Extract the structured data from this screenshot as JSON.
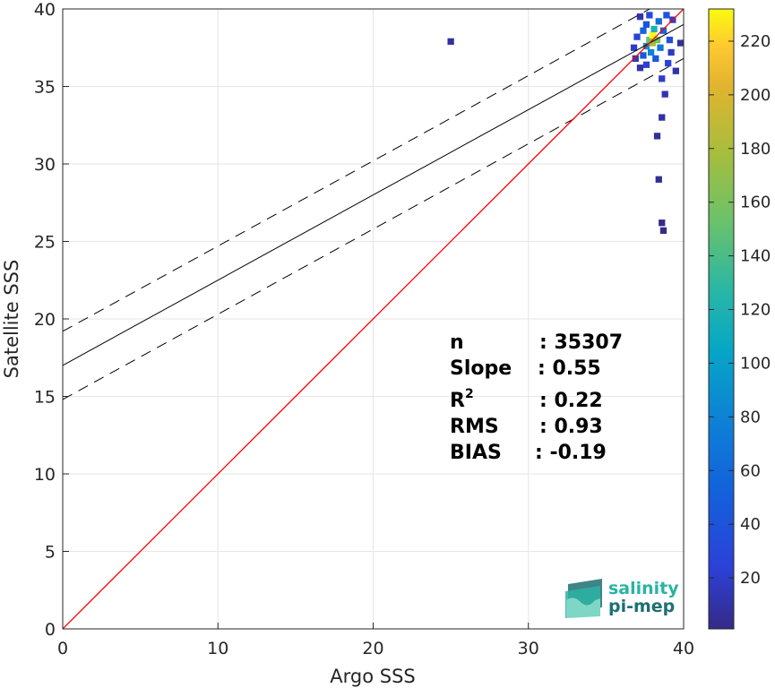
{
  "chart_data": {
    "type": "heatmap",
    "title": "",
    "xlabel": "Argo SSS",
    "ylabel": "Satellite SSS",
    "xlim": [
      0,
      40
    ],
    "ylim": [
      0,
      40
    ],
    "xticks": [
      0,
      10,
      20,
      30,
      40
    ],
    "yticks": [
      0,
      5,
      10,
      15,
      20,
      25,
      30,
      35,
      40
    ],
    "grid": true,
    "colorbar": {
      "colormap": "parula",
      "range": [
        1,
        232
      ],
      "ticks": [
        20,
        40,
        60,
        80,
        100,
        120,
        140,
        160,
        180,
        200,
        220
      ]
    },
    "lines": {
      "identity": {
        "slope": 1,
        "intercept": 0,
        "color": "#ff0000"
      },
      "regression": {
        "slope": 0.55,
        "intercept": 17.0,
        "color": "#000000"
      },
      "upper_bound": {
        "slope": 0.55,
        "intercept": 19.2,
        "color": "#000000",
        "style": "dashed"
      },
      "lower_bound": {
        "slope": 0.55,
        "intercept": 14.8,
        "color": "#000000",
        "style": "dashed"
      }
    },
    "density_cells": [
      {
        "x": 25.0,
        "y": 37.9,
        "count": 8
      },
      {
        "x": 36.8,
        "y": 37.5,
        "count": 20
      },
      {
        "x": 36.9,
        "y": 36.8,
        "count": 15
      },
      {
        "x": 37.0,
        "y": 38.2,
        "count": 25
      },
      {
        "x": 37.2,
        "y": 39.5,
        "count": 12
      },
      {
        "x": 37.2,
        "y": 36.2,
        "count": 10
      },
      {
        "x": 37.4,
        "y": 37.0,
        "count": 45
      },
      {
        "x": 37.4,
        "y": 38.6,
        "count": 55
      },
      {
        "x": 37.6,
        "y": 37.6,
        "count": 90
      },
      {
        "x": 37.6,
        "y": 39.0,
        "count": 40
      },
      {
        "x": 37.6,
        "y": 36.4,
        "count": 22
      },
      {
        "x": 37.8,
        "y": 38.0,
        "count": 150
      },
      {
        "x": 37.8,
        "y": 39.6,
        "count": 30
      },
      {
        "x": 37.9,
        "y": 37.2,
        "count": 80
      },
      {
        "x": 38.0,
        "y": 38.3,
        "count": 232
      },
      {
        "x": 38.0,
        "y": 37.8,
        "count": 180
      },
      {
        "x": 38.1,
        "y": 38.7,
        "count": 120
      },
      {
        "x": 38.2,
        "y": 36.8,
        "count": 45
      },
      {
        "x": 38.3,
        "y": 38.0,
        "count": 160
      },
      {
        "x": 38.4,
        "y": 39.2,
        "count": 60
      },
      {
        "x": 38.5,
        "y": 37.5,
        "count": 70
      },
      {
        "x": 38.6,
        "y": 35.5,
        "count": 20
      },
      {
        "x": 38.7,
        "y": 38.6,
        "count": 55
      },
      {
        "x": 38.8,
        "y": 34.5,
        "count": 12
      },
      {
        "x": 38.9,
        "y": 39.6,
        "count": 40
      },
      {
        "x": 39.0,
        "y": 36.5,
        "count": 25
      },
      {
        "x": 39.1,
        "y": 38.0,
        "count": 35
      },
      {
        "x": 39.2,
        "y": 37.2,
        "count": 18
      },
      {
        "x": 39.3,
        "y": 39.3,
        "count": 20
      },
      {
        "x": 39.5,
        "y": 36.0,
        "count": 10
      },
      {
        "x": 38.6,
        "y": 33.0,
        "count": 8
      },
      {
        "x": 38.3,
        "y": 31.8,
        "count": 6
      },
      {
        "x": 38.4,
        "y": 29.0,
        "count": 4
      },
      {
        "x": 39.8,
        "y": 37.8,
        "count": 8
      },
      {
        "x": 38.6,
        "y": 26.2,
        "count": 2
      },
      {
        "x": 38.7,
        "y": 25.7,
        "count": 2
      }
    ],
    "annotations": [
      {
        "label": "n",
        "value": ": 35307"
      },
      {
        "label": "Slope",
        "value": ": 0.55"
      },
      {
        "label": "R",
        "superscript": "2",
        "value": ": 0.22"
      },
      {
        "label": "RMS",
        "value": ": 0.93"
      },
      {
        "label": "BIAS",
        "value": ": -0.19"
      }
    ]
  },
  "logo": {
    "line1": "salinity",
    "line2": "pi-mep",
    "color1": "#2bb3a3",
    "color2": "#1e6f72"
  }
}
